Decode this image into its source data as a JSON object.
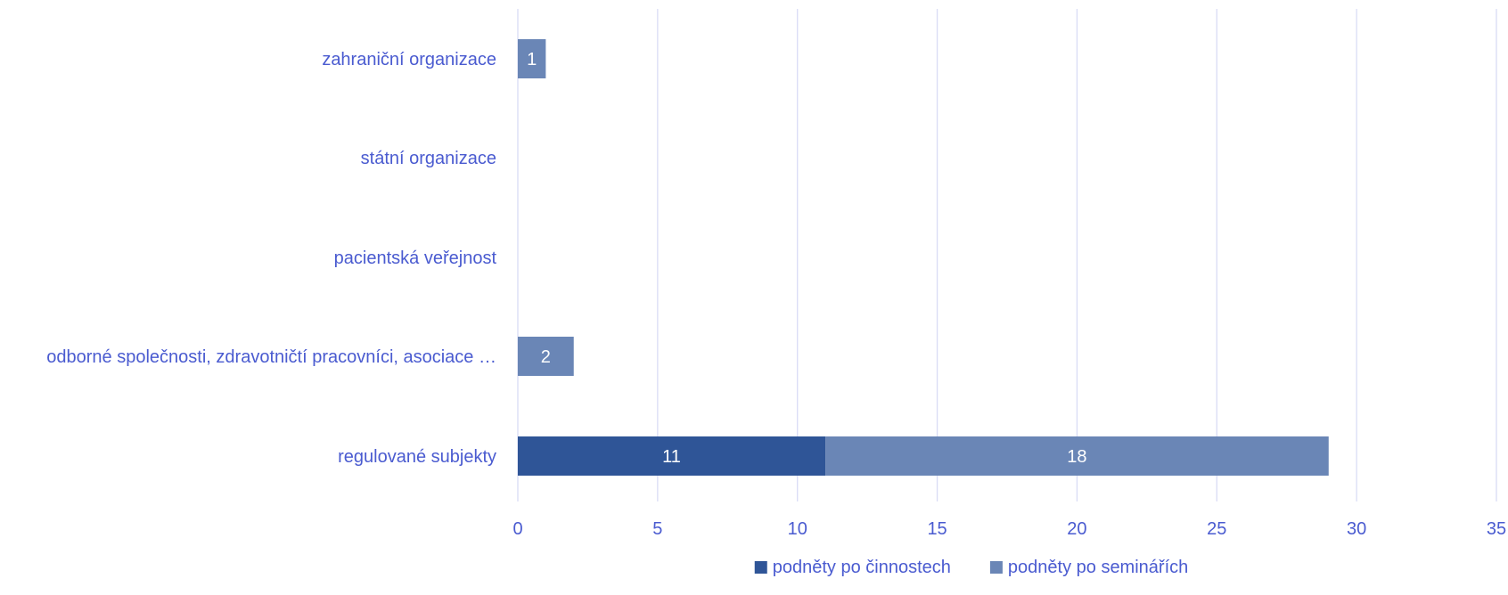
{
  "chart_data": {
    "type": "bar",
    "orientation": "horizontal",
    "stacked": true,
    "categories": [
      "regulované subjekty",
      "odborné společnosti, zdravotničtí pracovníci, asociace …",
      "pacientská veřejnost",
      "státní organizace",
      "zahraniční organizace"
    ],
    "series": [
      {
        "name": "podněty po činnostech",
        "values": [
          11,
          0,
          0,
          0,
          0
        ],
        "color": "#2f5597"
      },
      {
        "name": "podněty po seminářích",
        "values": [
          18,
          2,
          0,
          0,
          1
        ],
        "color": "#6a86b6"
      }
    ],
    "xlim": [
      0,
      35
    ],
    "xticks": [
      "0",
      "5",
      "10",
      "15",
      "20",
      "25",
      "30",
      "35"
    ],
    "grid": true,
    "legend": "bottom",
    "label_color": "#4a5bd0",
    "grid_color": "#d9dcf5",
    "data_label_color": "#ffffff"
  }
}
